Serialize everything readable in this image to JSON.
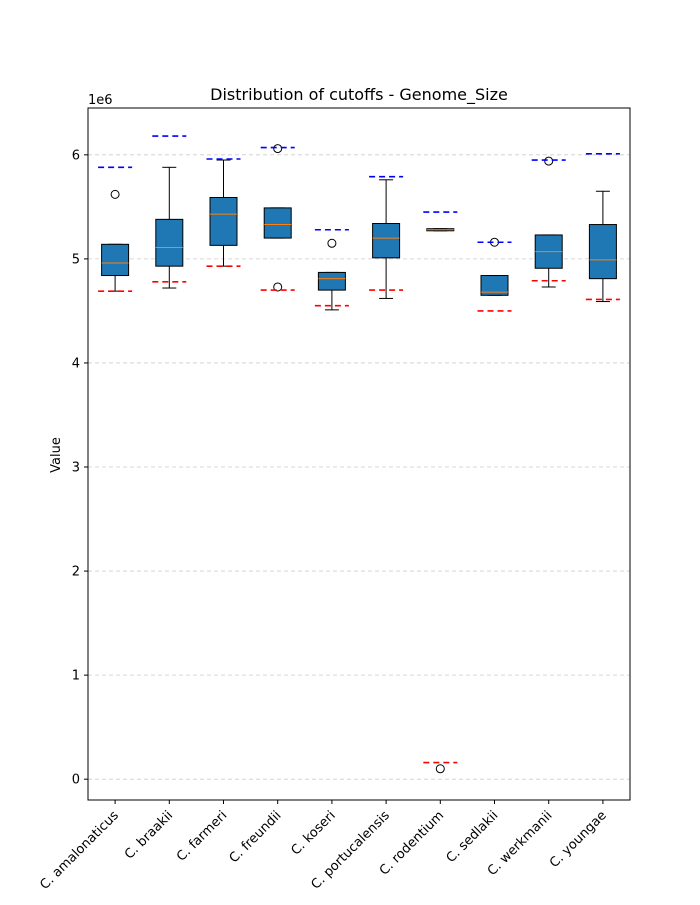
{
  "chart_data": {
    "type": "boxplot",
    "title": "Distribution of cutoffs - Genome_Size",
    "xlabel": "",
    "ylabel": "Value",
    "y_scale_label": "1e6",
    "ylim": [
      -0.2,
      6.45
    ],
    "yticks": [
      0,
      1,
      2,
      3,
      4,
      5,
      6
    ],
    "grid": "y-dashed",
    "categories": [
      "C. amalonaticus",
      "C. braakii",
      "C. farmeri",
      "C. freundii",
      "C. koseri",
      "C. portucalensis",
      "C. rodentium",
      "C. sedlakii",
      "C. werkmanii",
      "C. youngae"
    ],
    "boxes": [
      {
        "whislo": 4.69,
        "q1": 4.84,
        "med": 4.96,
        "q3": 5.14,
        "whishi": 5.14,
        "fliers": [
          5.62
        ],
        "lower_cutoff": 4.69,
        "upper_cutoff": 5.88
      },
      {
        "whislo": 4.72,
        "q1": 4.93,
        "med": 5.11,
        "q3": 5.38,
        "whishi": 5.88,
        "fliers": [],
        "lower_cutoff": 4.78,
        "upper_cutoff": 6.18
      },
      {
        "whislo": 4.93,
        "q1": 5.13,
        "med": 5.43,
        "q3": 5.59,
        "whishi": 5.95,
        "fliers": [],
        "lower_cutoff": 4.93,
        "upper_cutoff": 5.96
      },
      {
        "whislo": 5.2,
        "q1": 5.2,
        "med": 5.33,
        "q3": 5.49,
        "whishi": 5.49,
        "fliers": [
          4.73,
          6.06
        ],
        "lower_cutoff": 4.7,
        "upper_cutoff": 6.07
      },
      {
        "whislo": 4.51,
        "q1": 4.7,
        "med": 4.81,
        "q3": 4.87,
        "whishi": 4.87,
        "fliers": [
          5.15
        ],
        "lower_cutoff": 4.55,
        "upper_cutoff": 5.28
      },
      {
        "whislo": 4.62,
        "q1": 5.01,
        "med": 5.2,
        "q3": 5.34,
        "whishi": 5.76,
        "fliers": [],
        "lower_cutoff": 4.7,
        "upper_cutoff": 5.79
      },
      {
        "whislo": 5.27,
        "q1": 5.27,
        "med": 5.28,
        "q3": 5.29,
        "whishi": 5.29,
        "fliers": [
          0.1
        ],
        "lower_cutoff": 0.16,
        "upper_cutoff": 5.45
      },
      {
        "whislo": 4.65,
        "q1": 4.65,
        "med": 4.68,
        "q3": 4.84,
        "whishi": 4.84,
        "fliers": [
          5.16
        ],
        "lower_cutoff": 4.5,
        "upper_cutoff": 5.16
      },
      {
        "whislo": 4.73,
        "q1": 4.91,
        "med": 5.07,
        "q3": 5.23,
        "whishi": 5.23,
        "fliers": [
          5.94
        ],
        "lower_cutoff": 4.79,
        "upper_cutoff": 5.95
      },
      {
        "whislo": 4.59,
        "q1": 4.81,
        "med": 4.99,
        "q3": 5.33,
        "whishi": 5.65,
        "fliers": [],
        "lower_cutoff": 4.61,
        "upper_cutoff": 6.01
      }
    ],
    "colors": {
      "box_fill": "#1f77b4",
      "median": "#ff7f0e",
      "lower_cutoff": "#ff0000",
      "upper_cutoff": "#0000ff",
      "grid": "#cccccc"
    }
  }
}
